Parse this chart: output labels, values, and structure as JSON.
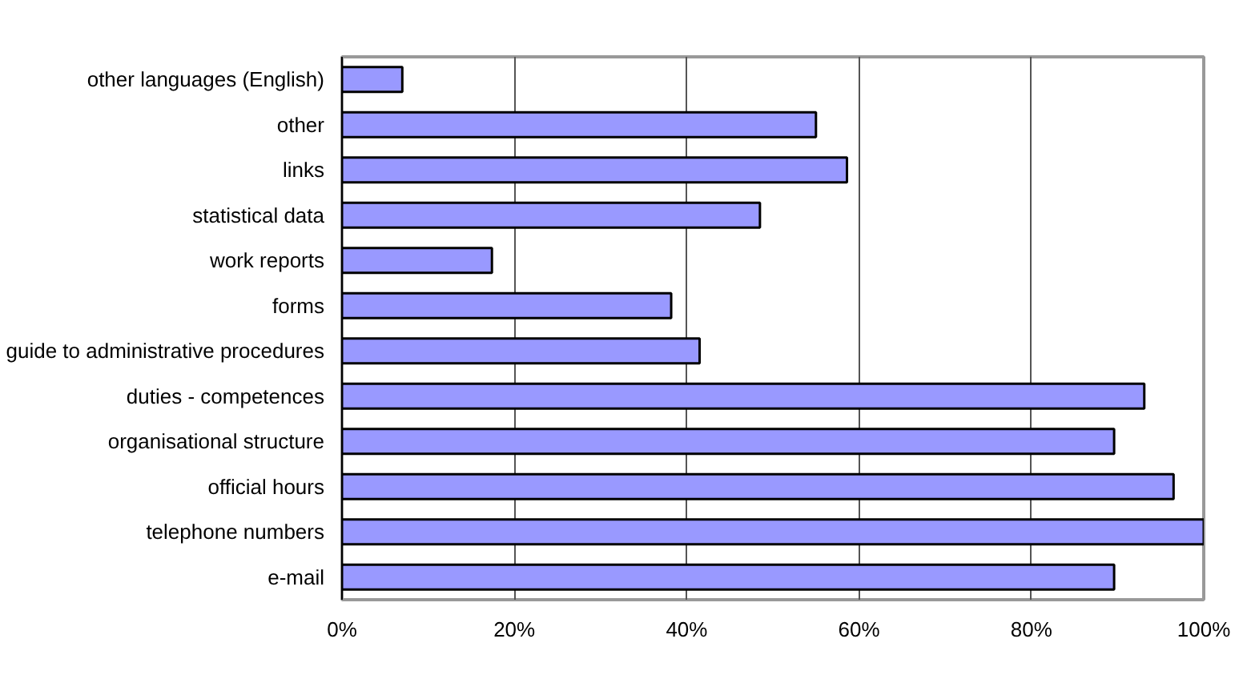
{
  "chart_data": {
    "type": "bar",
    "orientation": "horizontal",
    "categories": [
      "other languages (English)",
      "other",
      "links",
      "statistical data",
      "work reports",
      "forms",
      "guide to administrative procedures",
      "duties - competences",
      "organisational structure",
      "official hours",
      "telephone numbers",
      "e-mail"
    ],
    "values": [
      7.0,
      55.0,
      58.6,
      48.5,
      17.4,
      38.2,
      41.5,
      93.1,
      89.6,
      96.5,
      100,
      89.6
    ],
    "color": "#9999ff",
    "xlim": [
      0,
      100
    ],
    "xticks": [
      {
        "value": 0,
        "label": "0%"
      },
      {
        "value": 20,
        "label": "20%"
      },
      {
        "value": 40,
        "label": "40%"
      },
      {
        "value": 60,
        "label": "60%"
      },
      {
        "value": 80,
        "label": "80%"
      },
      {
        "value": 100,
        "label": "100%"
      }
    ],
    "grid": "x"
  }
}
